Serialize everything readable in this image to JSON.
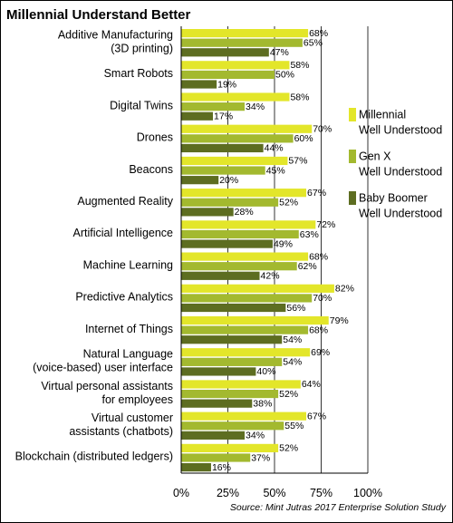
{
  "chart_data": {
    "type": "bar",
    "orientation": "horizontal",
    "title": "Millennial Understand Better",
    "categories": [
      [
        "Additive Manufacturing",
        "(3D printing)"
      ],
      [
        "Smart Robots"
      ],
      [
        "Digital Twins"
      ],
      [
        "Drones"
      ],
      [
        "Beacons"
      ],
      [
        "Augmented Reality"
      ],
      [
        "Artificial Intelligence"
      ],
      [
        "Machine Learning"
      ],
      [
        "Predictive Analytics"
      ],
      [
        "Internet of Things"
      ],
      [
        "Natural Language",
        "(voice-based) user interface"
      ],
      [
        "Virtual personal assistants",
        "for employees"
      ],
      [
        "Virtual customer",
        "assistants (chatbots)"
      ],
      [
        "Blockchain (distributed ledgers)"
      ]
    ],
    "series": [
      {
        "name": [
          "Millennial",
          "Well Understood"
        ],
        "color": "#e3e62a",
        "values": [
          68,
          58,
          58,
          70,
          57,
          67,
          72,
          68,
          82,
          79,
          69,
          64,
          67,
          52
        ]
      },
      {
        "name": [
          "Gen X",
          "Well Understood"
        ],
        "color": "#a3b92f",
        "values": [
          65,
          50,
          34,
          60,
          45,
          52,
          63,
          62,
          70,
          68,
          54,
          52,
          55,
          37
        ]
      },
      {
        "name": [
          "Baby Boomer",
          "Well Understood"
        ],
        "color": "#5d6d21",
        "values": [
          47,
          19,
          17,
          44,
          20,
          28,
          49,
          42,
          56,
          54,
          40,
          38,
          34,
          16
        ]
      }
    ],
    "value_suffix": "%",
    "xlim": [
      0,
      100
    ],
    "xticks": [
      "0%",
      "25%",
      "50%",
      "75%",
      "100%"
    ],
    "grid": true,
    "legend_position": "right",
    "source": "Source: Mint Jutras 2017 Enterprise Solution Study"
  }
}
